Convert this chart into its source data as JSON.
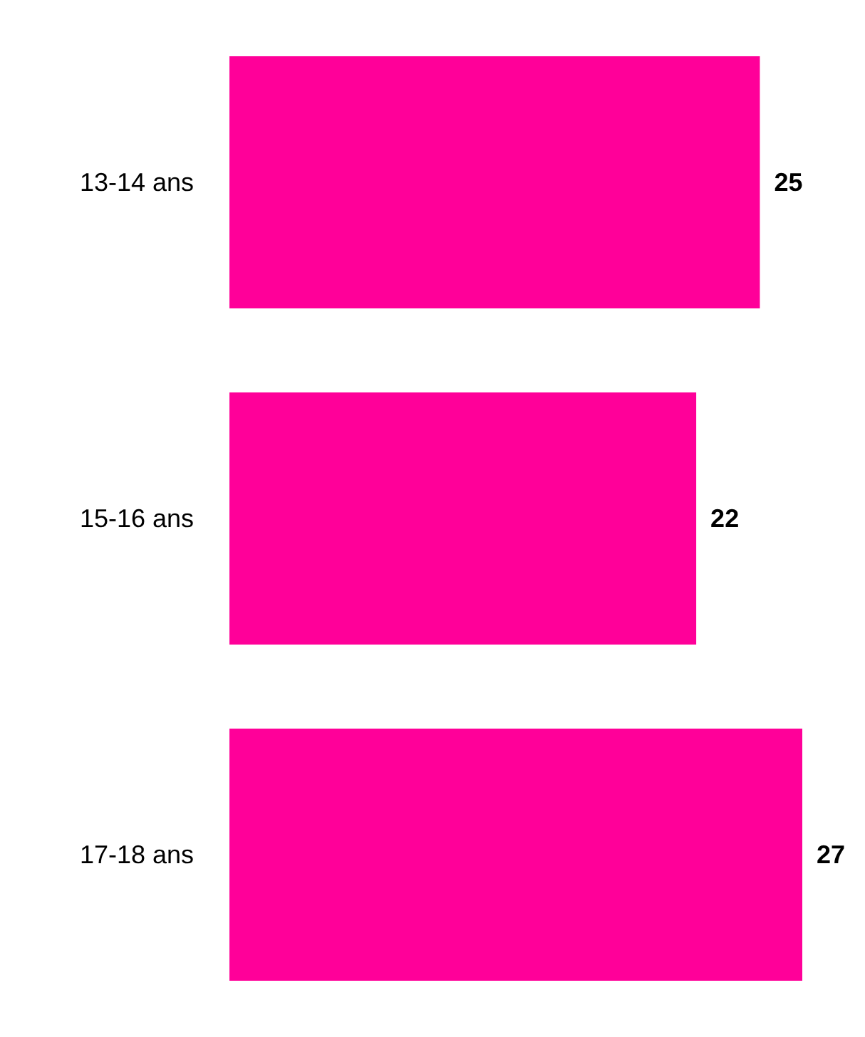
{
  "chart_data": {
    "type": "bar",
    "orientation": "horizontal",
    "categories": [
      "13-14 ans",
      "15-16 ans",
      "17-18 ans"
    ],
    "values": [
      25,
      22,
      27
    ],
    "color": "#ff0099",
    "data_labels": true
  }
}
